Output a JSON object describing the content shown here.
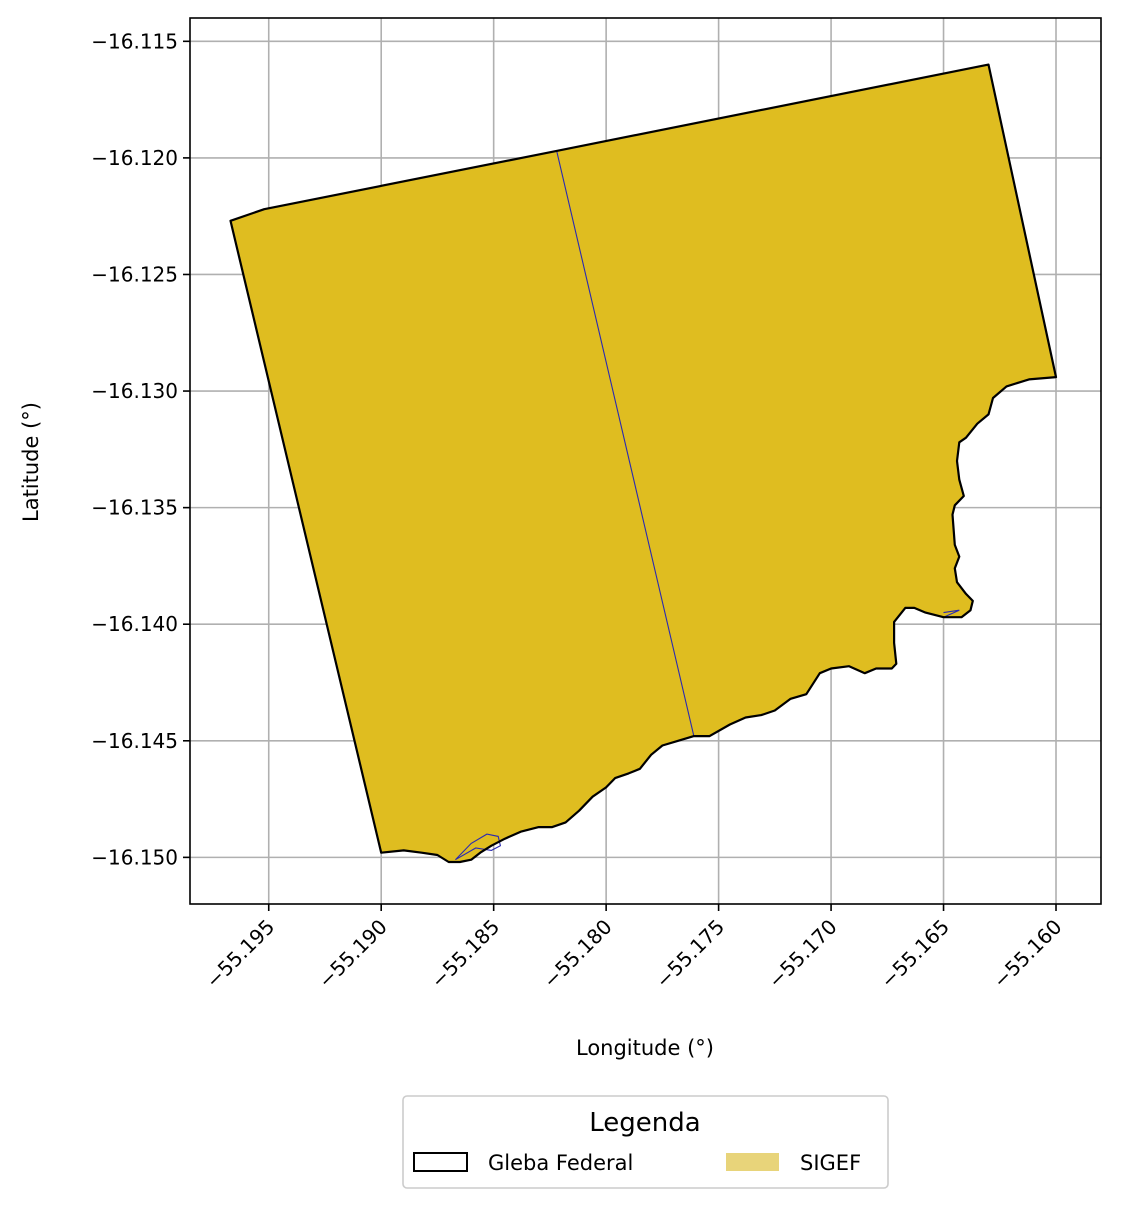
{
  "chart_data": {
    "type": "map",
    "xlabel": "Longitude (°)",
    "ylabel": "Latitude (°)",
    "xlim": [
      -55.1985,
      -55.158
    ],
    "ylim": [
      -16.152,
      -16.114
    ],
    "xticks": [
      -55.195,
      -55.19,
      -55.185,
      -55.18,
      -55.175,
      -55.17,
      -55.165,
      -55.16
    ],
    "xtick_labels": [
      "−55.195",
      "−55.190",
      "−55.185",
      "−55.180",
      "−55.175",
      "−55.170",
      "−55.165",
      "−55.160"
    ],
    "yticks": [
      -16.115,
      -16.12,
      -16.125,
      -16.13,
      -16.135,
      -16.14,
      -16.145,
      -16.15
    ],
    "ytick_labels": [
      "−16.115",
      "−16.120",
      "−16.125",
      "−16.130",
      "−16.135",
      "−16.140",
      "−16.145",
      "−16.150"
    ],
    "grid": true,
    "legend": {
      "title": "Legenda",
      "placement": "bottom-center-outside",
      "entries": [
        {
          "label": "Gleba Federal",
          "style": "outline"
        },
        {
          "label": "SIGEF",
          "style": "fill"
        }
      ]
    },
    "colors": {
      "sigef_fill": "#dfbd20",
      "legend_sigef": "#e8d47a",
      "outline": "#000000",
      "parcel_line": "#2a2ab0",
      "grid": "#b0b0b0"
    },
    "gleba_boundary": [
      [
        -55.1967,
        -16.1227
      ],
      [
        -55.1952,
        -16.1222
      ],
      [
        -55.1822,
        -16.1197
      ],
      [
        -55.163,
        -16.116
      ],
      [
        -55.16,
        -16.1294
      ],
      [
        -55.1612,
        -16.1295
      ],
      [
        -55.1622,
        -16.1298
      ],
      [
        -55.1628,
        -16.1303
      ],
      [
        -55.163,
        -16.131
      ],
      [
        -55.1635,
        -16.1314
      ],
      [
        -55.164,
        -16.132
      ],
      [
        -55.1643,
        -16.1322
      ],
      [
        -55.1644,
        -16.133
      ],
      [
        -55.1643,
        -16.1338
      ],
      [
        -55.1641,
        -16.1345
      ],
      [
        -55.1645,
        -16.1349
      ],
      [
        -55.1646,
        -16.1353
      ],
      [
        -55.1645,
        -16.1366
      ],
      [
        -55.1643,
        -16.1371
      ],
      [
        -55.1645,
        -16.1376
      ],
      [
        -55.1644,
        -16.1382
      ],
      [
        -55.164,
        -16.1387
      ],
      [
        -55.1637,
        -16.139
      ],
      [
        -55.1638,
        -16.1394
      ],
      [
        -55.1642,
        -16.1397
      ],
      [
        -55.165,
        -16.1397
      ],
      [
        -55.1658,
        -16.1395
      ],
      [
        -55.1663,
        -16.1393
      ],
      [
        -55.1667,
        -16.1393
      ],
      [
        -55.1672,
        -16.1399
      ],
      [
        -55.1672,
        -16.1408
      ],
      [
        -55.1671,
        -16.1417
      ],
      [
        -55.1673,
        -16.1419
      ],
      [
        -55.168,
        -16.1419
      ],
      [
        -55.1685,
        -16.1421
      ],
      [
        -55.1692,
        -16.1418
      ],
      [
        -55.17,
        -16.1419
      ],
      [
        -55.1705,
        -16.1421
      ],
      [
        -55.1711,
        -16.143
      ],
      [
        -55.1718,
        -16.1432
      ],
      [
        -55.1725,
        -16.1437
      ],
      [
        -55.1731,
        -16.1439
      ],
      [
        -55.1738,
        -16.144
      ],
      [
        -55.1745,
        -16.1443
      ],
      [
        -55.1754,
        -16.1448
      ],
      [
        -55.1761,
        -16.1448
      ],
      [
        -55.1768,
        -16.145
      ],
      [
        -55.1775,
        -16.1452
      ],
      [
        -55.178,
        -16.1456
      ],
      [
        -55.1785,
        -16.1462
      ],
      [
        -55.179,
        -16.1464
      ],
      [
        -55.1796,
        -16.1466
      ],
      [
        -55.18,
        -16.147
      ],
      [
        -55.1806,
        -16.1474
      ],
      [
        -55.1812,
        -16.148
      ],
      [
        -55.1818,
        -16.1485
      ],
      [
        -55.1824,
        -16.1487
      ],
      [
        -55.183,
        -16.1487
      ],
      [
        -55.1838,
        -16.1489
      ],
      [
        -55.1845,
        -16.1492
      ],
      [
        -55.1851,
        -16.1495
      ],
      [
        -55.1856,
        -16.1498
      ],
      [
        -55.186,
        -16.1501
      ],
      [
        -55.1865,
        -16.1502
      ],
      [
        -55.187,
        -16.1502
      ],
      [
        -55.1875,
        -16.1499
      ],
      [
        -55.1882,
        -16.1498
      ],
      [
        -55.189,
        -16.1497
      ],
      [
        -55.19,
        -16.1498
      ],
      [
        -55.1967,
        -16.1227
      ]
    ],
    "sigef_divider": [
      [
        -55.1822,
        -16.1197
      ],
      [
        -55.1761,
        -16.1448
      ]
    ],
    "sigef_small_parcel": [
      [
        -55.1867,
        -16.1501
      ],
      [
        -55.186,
        -16.1494
      ],
      [
        -55.1853,
        -16.149
      ],
      [
        -55.1848,
        -16.1491
      ],
      [
        -55.1847,
        -16.1495
      ],
      [
        -55.1851,
        -16.1497
      ],
      [
        -55.1858,
        -16.1496
      ],
      [
        -55.1867,
        -16.1501
      ]
    ],
    "sigef_east_notch": [
      [
        -55.165,
        -16.1397
      ],
      [
        -55.1643,
        -16.1394
      ],
      [
        -55.165,
        -16.1395
      ]
    ]
  }
}
